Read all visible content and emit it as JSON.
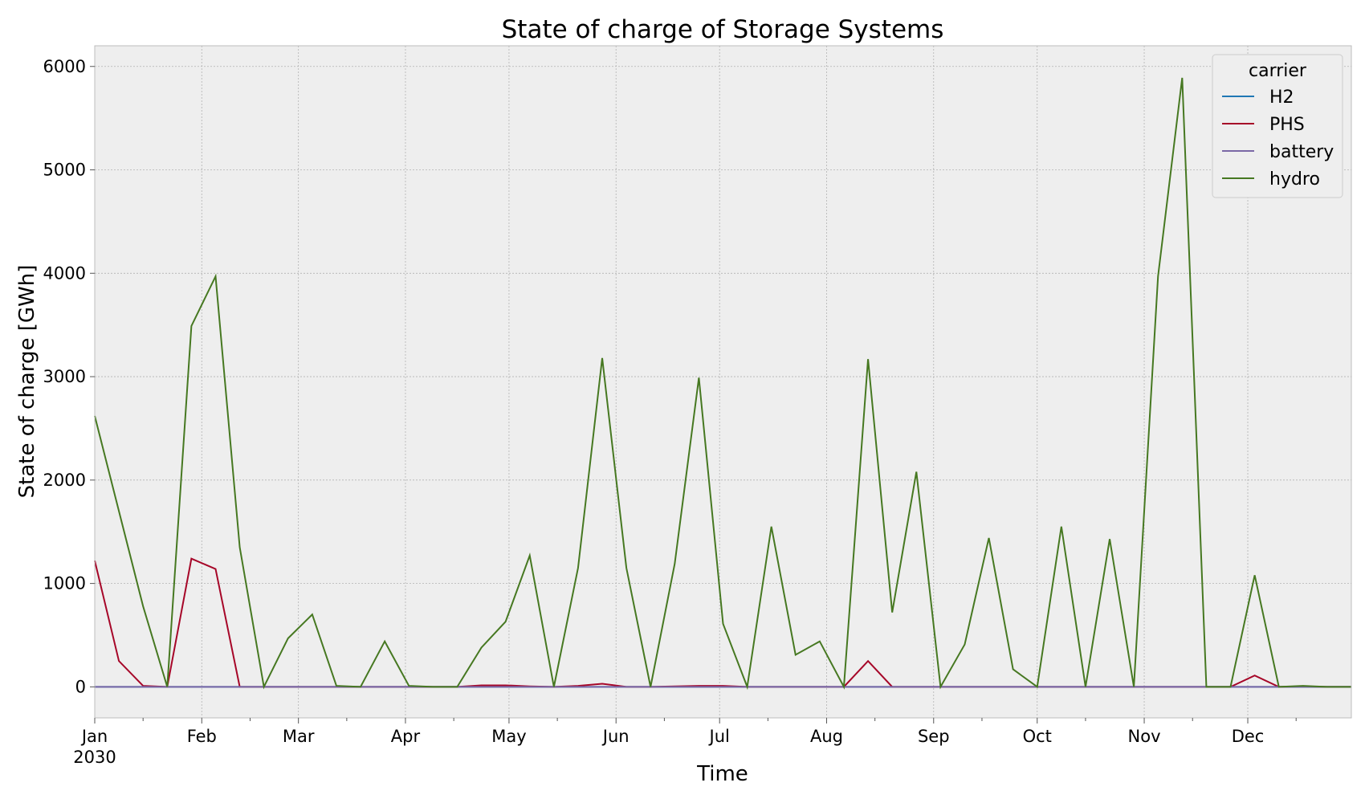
{
  "chart_data": {
    "type": "line",
    "title": "State of charge of Storage Systems",
    "xlabel": "Time",
    "ylabel": "State of charge [GWh]",
    "x_range": [
      "2030-01-01",
      "2030-12-31"
    ],
    "ylim": [
      -300,
      6200
    ],
    "grid": true,
    "legend_placement": "top-right",
    "legend_title": "carrier",
    "x_ticks": [
      {
        "date": "2030-01-01",
        "label": "Jan",
        "sublabel": "2030"
      },
      {
        "date": "2030-02-01",
        "label": "Feb",
        "sublabel": ""
      },
      {
        "date": "2030-03-01",
        "label": "Mar",
        "sublabel": ""
      },
      {
        "date": "2030-04-01",
        "label": "Apr",
        "sublabel": ""
      },
      {
        "date": "2030-05-01",
        "label": "May",
        "sublabel": ""
      },
      {
        "date": "2030-06-01",
        "label": "Jun",
        "sublabel": ""
      },
      {
        "date": "2030-07-01",
        "label": "Jul",
        "sublabel": ""
      },
      {
        "date": "2030-08-01",
        "label": "Aug",
        "sublabel": ""
      },
      {
        "date": "2030-09-01",
        "label": "Sep",
        "sublabel": ""
      },
      {
        "date": "2030-10-01",
        "label": "Oct",
        "sublabel": ""
      },
      {
        "date": "2030-11-01",
        "label": "Nov",
        "sublabel": ""
      },
      {
        "date": "2030-12-01",
        "label": "Dec",
        "sublabel": ""
      }
    ],
    "y_ticks": [
      {
        "value": 0,
        "label": "0"
      },
      {
        "value": 1000,
        "label": "1000"
      },
      {
        "value": 2000,
        "label": "2000"
      },
      {
        "value": 3000,
        "label": "3000"
      },
      {
        "value": 4000,
        "label": "4000"
      },
      {
        "value": 5000,
        "label": "5000"
      },
      {
        "value": 6000,
        "label": "6000"
      }
    ],
    "x": [
      "2030-01-01",
      "2030-01-08",
      "2030-01-15",
      "2030-01-22",
      "2030-01-29",
      "2030-02-05",
      "2030-02-12",
      "2030-02-19",
      "2030-02-26",
      "2030-03-05",
      "2030-03-12",
      "2030-03-19",
      "2030-03-26",
      "2030-04-02",
      "2030-04-09",
      "2030-04-16",
      "2030-04-23",
      "2030-04-30",
      "2030-05-07",
      "2030-05-14",
      "2030-05-21",
      "2030-05-28",
      "2030-06-04",
      "2030-06-11",
      "2030-06-18",
      "2030-06-25",
      "2030-07-02",
      "2030-07-09",
      "2030-07-16",
      "2030-07-23",
      "2030-07-30",
      "2030-08-06",
      "2030-08-13",
      "2030-08-20",
      "2030-08-27",
      "2030-09-03",
      "2030-09-10",
      "2030-09-17",
      "2030-09-24",
      "2030-10-01",
      "2030-10-08",
      "2030-10-15",
      "2030-10-22",
      "2030-10-29",
      "2030-11-05",
      "2030-11-12",
      "2030-11-19",
      "2030-11-26",
      "2030-12-03",
      "2030-12-10",
      "2030-12-17",
      "2030-12-24",
      "2030-12-31"
    ],
    "series": [
      {
        "name": "H2",
        "color": "#1f77b4",
        "values": [
          0,
          0,
          0,
          0,
          0,
          0,
          0,
          0,
          0,
          0,
          0,
          0,
          0,
          0,
          0,
          0,
          0,
          0,
          0,
          0,
          0,
          0,
          0,
          0,
          0,
          0,
          0,
          0,
          0,
          0,
          0,
          0,
          0,
          0,
          0,
          0,
          0,
          0,
          0,
          0,
          0,
          0,
          0,
          0,
          0,
          0,
          0,
          0,
          0,
          0,
          0,
          0,
          0
        ]
      },
      {
        "name": "PHS",
        "color": "#a60628",
        "values": [
          1220,
          250,
          10,
          0,
          1240,
          1140,
          0,
          0,
          0,
          0,
          0,
          0,
          0,
          0,
          0,
          0,
          15,
          15,
          5,
          0,
          10,
          30,
          0,
          0,
          5,
          10,
          10,
          0,
          0,
          0,
          0,
          0,
          250,
          0,
          0,
          0,
          0,
          0,
          0,
          0,
          0,
          0,
          0,
          0,
          0,
          0,
          0,
          0,
          110,
          0,
          5,
          0,
          0
        ]
      },
      {
        "name": "battery",
        "color": "#7a68a6",
        "values": [
          0,
          0,
          0,
          0,
          0,
          0,
          0,
          0,
          0,
          0,
          0,
          0,
          0,
          0,
          0,
          0,
          0,
          0,
          0,
          0,
          0,
          0,
          0,
          0,
          0,
          0,
          0,
          0,
          0,
          0,
          0,
          0,
          0,
          0,
          0,
          0,
          0,
          0,
          0,
          0,
          0,
          0,
          0,
          0,
          0,
          0,
          0,
          0,
          0,
          0,
          0,
          0,
          0
        ]
      },
      {
        "name": "hydro",
        "color": "#467821",
        "values": [
          2620,
          1700,
          780,
          0,
          3490,
          3970,
          1350,
          0,
          470,
          700,
          10,
          0,
          440,
          10,
          0,
          0,
          380,
          630,
          1270,
          0,
          1150,
          3180,
          1150,
          0,
          1190,
          2990,
          610,
          0,
          1550,
          310,
          440,
          0,
          3170,
          720,
          2080,
          0,
          410,
          1440,
          170,
          0,
          1550,
          0,
          1430,
          0,
          3970,
          5890,
          0,
          0,
          1080,
          0,
          10,
          0,
          0
        ]
      }
    ]
  }
}
